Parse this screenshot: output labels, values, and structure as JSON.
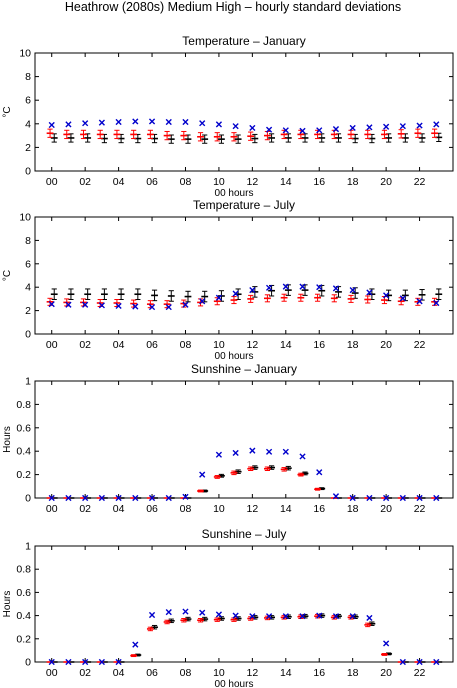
{
  "figure_title": "Heathrow (2080s) Medium High – hourly standard deviations",
  "colors": {
    "black_series": "#000000",
    "red_series": "#ff0000",
    "blue_series": "#0000cc"
  },
  "chart_data": [
    {
      "type": "scatter",
      "title": "Temperature – January",
      "xlabel": "00 hours",
      "ylabel": "°C",
      "ylim": [
        0,
        10
      ],
      "yticks": [
        0,
        2,
        4,
        6,
        8,
        10
      ],
      "xlim": [
        -1,
        24
      ],
      "xticks": [
        0,
        2,
        4,
        6,
        8,
        10,
        12,
        14,
        16,
        18,
        20,
        22
      ],
      "xticklabels": [
        "00",
        "02",
        "04",
        "06",
        "08",
        "10",
        "12",
        "14",
        "16",
        "18",
        "20",
        "22"
      ],
      "x": [
        0,
        1,
        2,
        3,
        4,
        5,
        6,
        7,
        8,
        9,
        10,
        11,
        12,
        13,
        14,
        15,
        16,
        17,
        18,
        19,
        20,
        21,
        22,
        23
      ],
      "series": [
        {
          "marker": "errorbar-black",
          "offset": 0.15,
          "values": [
            2.8,
            2.8,
            2.8,
            2.75,
            2.75,
            2.75,
            2.75,
            2.7,
            2.7,
            2.7,
            2.7,
            2.7,
            2.75,
            2.8,
            2.8,
            2.8,
            2.8,
            2.8,
            2.75,
            2.75,
            2.8,
            2.8,
            2.8,
            2.85
          ],
          "err": [
            0.35,
            0.35,
            0.35,
            0.35,
            0.35,
            0.35,
            0.35,
            0.35,
            0.35,
            0.35,
            0.35,
            0.35,
            0.35,
            0.35,
            0.35,
            0.35,
            0.35,
            0.35,
            0.35,
            0.35,
            0.35,
            0.35,
            0.35,
            0.35
          ]
        },
        {
          "marker": "errorbar-red",
          "offset": -0.1,
          "values": [
            3.2,
            3.1,
            3.1,
            3.1,
            3.1,
            3.1,
            3.1,
            3.0,
            3.0,
            2.9,
            2.9,
            2.9,
            2.95,
            3.0,
            3.1,
            3.1,
            3.1,
            3.1,
            3.1,
            3.1,
            3.1,
            3.15,
            3.2,
            3.2
          ],
          "err": [
            0.35,
            0.35,
            0.35,
            0.35,
            0.35,
            0.35,
            0.35,
            0.35,
            0.35,
            0.35,
            0.35,
            0.35,
            0.35,
            0.35,
            0.35,
            0.35,
            0.35,
            0.35,
            0.35,
            0.35,
            0.35,
            0.35,
            0.35,
            0.35
          ]
        },
        {
          "marker": "x-blue",
          "offset": 0,
          "values": [
            3.9,
            3.95,
            4.05,
            4.1,
            4.15,
            4.2,
            4.2,
            4.15,
            4.15,
            4.05,
            3.95,
            3.8,
            3.65,
            3.5,
            3.45,
            3.4,
            3.45,
            3.55,
            3.65,
            3.7,
            3.75,
            3.8,
            3.85,
            3.95
          ]
        }
      ]
    },
    {
      "type": "scatter",
      "title": "Temperature – July",
      "xlabel": "00 hours",
      "ylabel": "°C",
      "ylim": [
        0,
        10
      ],
      "yticks": [
        0,
        2,
        4,
        6,
        8,
        10
      ],
      "xlim": [
        -1,
        24
      ],
      "xticks": [
        0,
        2,
        4,
        6,
        8,
        10,
        12,
        14,
        16,
        18,
        20,
        22
      ],
      "xticklabels": [
        "00",
        "02",
        "04",
        "06",
        "08",
        "10",
        "12",
        "14",
        "16",
        "18",
        "20",
        "22"
      ],
      "x": [
        0,
        1,
        2,
        3,
        4,
        5,
        6,
        7,
        8,
        9,
        10,
        11,
        12,
        13,
        14,
        15,
        16,
        17,
        18,
        19,
        20,
        21,
        22,
        23
      ],
      "series": [
        {
          "marker": "errorbar-black",
          "offset": 0.15,
          "values": [
            3.4,
            3.4,
            3.4,
            3.4,
            3.4,
            3.4,
            3.3,
            3.25,
            3.2,
            3.2,
            3.25,
            3.4,
            3.6,
            3.7,
            3.75,
            3.75,
            3.7,
            3.6,
            3.5,
            3.4,
            3.3,
            3.3,
            3.35,
            3.4
          ],
          "err": [
            0.45,
            0.45,
            0.45,
            0.45,
            0.45,
            0.45,
            0.45,
            0.45,
            0.45,
            0.45,
            0.45,
            0.45,
            0.45,
            0.45,
            0.45,
            0.45,
            0.45,
            0.45,
            0.45,
            0.45,
            0.45,
            0.45,
            0.45,
            0.45
          ]
        },
        {
          "marker": "errorbar-red",
          "offset": -0.1,
          "values": [
            2.75,
            2.7,
            2.7,
            2.65,
            2.65,
            2.6,
            2.55,
            2.55,
            2.6,
            2.7,
            2.8,
            2.9,
            3.0,
            3.05,
            3.1,
            3.1,
            3.1,
            3.05,
            3.0,
            2.95,
            2.9,
            2.8,
            2.75,
            2.75
          ],
          "err": [
            0.3,
            0.3,
            0.3,
            0.3,
            0.3,
            0.3,
            0.3,
            0.3,
            0.3,
            0.3,
            0.3,
            0.3,
            0.3,
            0.3,
            0.3,
            0.3,
            0.3,
            0.3,
            0.3,
            0.3,
            0.3,
            0.3,
            0.3,
            0.3
          ]
        },
        {
          "marker": "x-blue",
          "offset": 0,
          "values": [
            2.55,
            2.5,
            2.5,
            2.45,
            2.4,
            2.35,
            2.3,
            2.3,
            2.5,
            2.8,
            3.1,
            3.45,
            3.75,
            3.95,
            4.05,
            4.05,
            4.0,
            3.9,
            3.75,
            3.55,
            3.3,
            3.05,
            2.8,
            2.65
          ]
        }
      ]
    },
    {
      "type": "scatter",
      "title": "Sunshine – January",
      "xlabel": "",
      "ylabel": "Hours",
      "ylim": [
        0,
        1
      ],
      "yticks": [
        0,
        0.2,
        0.4,
        0.6,
        0.8,
        1
      ],
      "xlim": [
        -1,
        24
      ],
      "xticks": [
        0,
        2,
        4,
        6,
        8,
        10,
        12,
        14,
        16,
        18,
        20,
        22
      ],
      "xticklabels": [
        "00",
        "02",
        "04",
        "06",
        "08",
        "10",
        "12",
        "14",
        "16",
        "18",
        "20",
        "22"
      ],
      "x": [
        0,
        1,
        2,
        3,
        4,
        5,
        6,
        7,
        8,
        9,
        10,
        11,
        12,
        13,
        14,
        15,
        16,
        17,
        18,
        19,
        20,
        21,
        22,
        23
      ],
      "series": [
        {
          "marker": "errorbar-black",
          "offset": 0.15,
          "values": [
            0,
            0,
            0,
            0,
            0,
            0,
            0,
            0,
            0,
            0.06,
            0.19,
            0.225,
            0.26,
            0.26,
            0.255,
            0.21,
            0.08,
            0,
            0,
            0,
            0,
            0,
            0,
            0
          ],
          "err": [
            0,
            0,
            0,
            0,
            0,
            0,
            0,
            0,
            0,
            0.008,
            0.012,
            0.015,
            0.015,
            0.015,
            0.015,
            0.012,
            0.008,
            0,
            0,
            0,
            0,
            0,
            0,
            0
          ]
        },
        {
          "marker": "errorbar-red",
          "offset": -0.1,
          "values": [
            0,
            0,
            0,
            0,
            0,
            0,
            0,
            0,
            0,
            0.06,
            0.18,
            0.215,
            0.25,
            0.25,
            0.245,
            0.2,
            0.075,
            0,
            0,
            0,
            0,
            0,
            0,
            0
          ],
          "err": [
            0,
            0,
            0,
            0,
            0,
            0,
            0,
            0,
            0,
            0.008,
            0.012,
            0.015,
            0.015,
            0.015,
            0.015,
            0.012,
            0.008,
            0,
            0,
            0,
            0,
            0,
            0,
            0
          ]
        },
        {
          "marker": "x-blue",
          "offset": 0,
          "values": [
            0,
            0,
            0,
            0,
            0,
            0,
            0,
            0,
            0.01,
            0.2,
            0.37,
            0.385,
            0.405,
            0.395,
            0.395,
            0.355,
            0.22,
            0.015,
            0,
            0,
            0,
            0,
            0,
            0
          ]
        }
      ]
    },
    {
      "type": "scatter",
      "title": "Sunshine – July",
      "xlabel": "00 hours",
      "ylabel": "Hours",
      "ylim": [
        0,
        1
      ],
      "yticks": [
        0,
        0.2,
        0.4,
        0.6,
        0.8,
        1
      ],
      "xlim": [
        -1,
        24
      ],
      "xticks": [
        0,
        2,
        4,
        6,
        8,
        10,
        12,
        14,
        16,
        18,
        20,
        22
      ],
      "xticklabels": [
        "00",
        "02",
        "04",
        "06",
        "08",
        "10",
        "12",
        "14",
        "16",
        "18",
        "20",
        "22"
      ],
      "x": [
        0,
        1,
        2,
        3,
        4,
        5,
        6,
        7,
        8,
        9,
        10,
        11,
        12,
        13,
        14,
        15,
        16,
        17,
        18,
        19,
        20,
        21,
        22,
        23
      ],
      "series": [
        {
          "marker": "errorbar-black",
          "offset": 0.15,
          "values": [
            0,
            0,
            0,
            0,
            0,
            0.06,
            0.3,
            0.355,
            0.37,
            0.37,
            0.375,
            0.375,
            0.385,
            0.385,
            0.39,
            0.395,
            0.4,
            0.395,
            0.39,
            0.33,
            0.07,
            0,
            0,
            0
          ],
          "err": [
            0,
            0,
            0,
            0,
            0,
            0.008,
            0.015,
            0.015,
            0.015,
            0.015,
            0.015,
            0.015,
            0.015,
            0.015,
            0.015,
            0.015,
            0.015,
            0.015,
            0.015,
            0.015,
            0.008,
            0,
            0,
            0
          ]
        },
        {
          "marker": "errorbar-red",
          "offset": -0.1,
          "values": [
            0,
            0,
            0,
            0,
            0,
            0.055,
            0.285,
            0.345,
            0.36,
            0.36,
            0.365,
            0.365,
            0.375,
            0.38,
            0.385,
            0.39,
            0.395,
            0.385,
            0.385,
            0.32,
            0.065,
            0,
            0,
            0
          ],
          "err": [
            0,
            0,
            0,
            0,
            0,
            0.008,
            0.015,
            0.015,
            0.015,
            0.015,
            0.015,
            0.015,
            0.015,
            0.015,
            0.015,
            0.015,
            0.015,
            0.015,
            0.015,
            0.015,
            0.008,
            0,
            0,
            0
          ]
        },
        {
          "marker": "x-blue",
          "offset": 0,
          "values": [
            0,
            0,
            0,
            0,
            0,
            0.15,
            0.405,
            0.43,
            0.435,
            0.425,
            0.41,
            0.4,
            0.395,
            0.395,
            0.395,
            0.395,
            0.4,
            0.395,
            0.395,
            0.38,
            0.16,
            0,
            0,
            0
          ]
        }
      ]
    }
  ]
}
